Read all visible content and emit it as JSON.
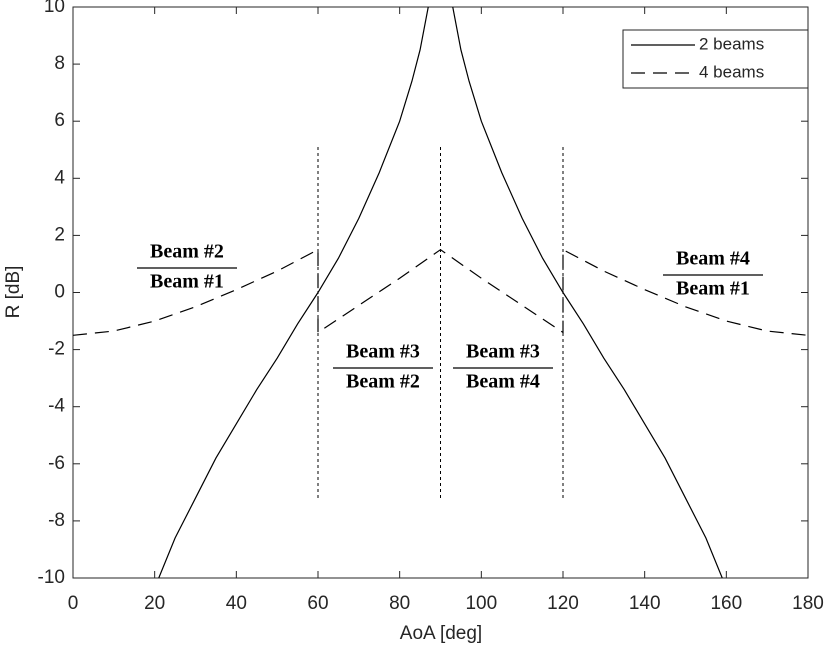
{
  "chart_data": {
    "type": "line",
    "xlabel": "AoA [deg]",
    "ylabel": "R [dB]",
    "xlim": [
      0,
      180
    ],
    "xticks": [
      0,
      20,
      40,
      60,
      80,
      100,
      120,
      140,
      160,
      180
    ],
    "ylim": [
      -10,
      10
    ],
    "yticks": [
      -10,
      -8,
      -6,
      -4,
      -2,
      0,
      2,
      4,
      6,
      8,
      10
    ],
    "grid": false,
    "legend": "top-right",
    "series": [
      {
        "name": "2 beams",
        "color": "#000000",
        "dash": "solid",
        "x": [
          21,
          25,
          30,
          35,
          40,
          45,
          50,
          55,
          60,
          65,
          70,
          75,
          80,
          83,
          85,
          87,
          90,
          93,
          95,
          97,
          100,
          105,
          110,
          115,
          120,
          125,
          130,
          135,
          140,
          145,
          150,
          155,
          159
        ],
        "values": [
          -10,
          -8.6,
          -7.2,
          -5.8,
          -4.6,
          -3.4,
          -2.3,
          -1.1,
          0,
          1.2,
          2.6,
          4.2,
          6.0,
          7.4,
          8.5,
          10,
          null,
          10,
          8.5,
          7.4,
          6.0,
          4.2,
          2.6,
          1.2,
          0,
          -1.1,
          -2.3,
          -3.4,
          -4.6,
          -5.8,
          -7.2,
          -8.6,
          -10
        ]
      },
      {
        "name": "4 beams",
        "color": "#000000",
        "dash": "dashed",
        "x": [
          0,
          10,
          20,
          30,
          40,
          50,
          60,
          60,
          70,
          80,
          90,
          100,
          110,
          120,
          120,
          130,
          140,
          150,
          160,
          170,
          180
        ],
        "values": [
          -1.5,
          -1.35,
          -1.0,
          -0.5,
          0.1,
          0.75,
          1.5,
          -1.4,
          -0.45,
          0.5,
          1.5,
          0.5,
          -0.45,
          -1.4,
          1.5,
          0.75,
          0.1,
          -0.5,
          -1.0,
          -1.35,
          -1.5
        ]
      }
    ],
    "vlines": [
      60,
      90,
      120
    ],
    "vline_ylim": [
      -7.2,
      5.1
    ],
    "annotations": [
      {
        "numerator": "Beam #2",
        "denominator": "Beam #1"
      },
      {
        "numerator": "Beam #3",
        "denominator": "Beam #2"
      },
      {
        "numerator": "Beam #3",
        "denominator": "Beam #4"
      },
      {
        "numerator": "Beam #4",
        "denominator": "Beam #1"
      }
    ]
  }
}
